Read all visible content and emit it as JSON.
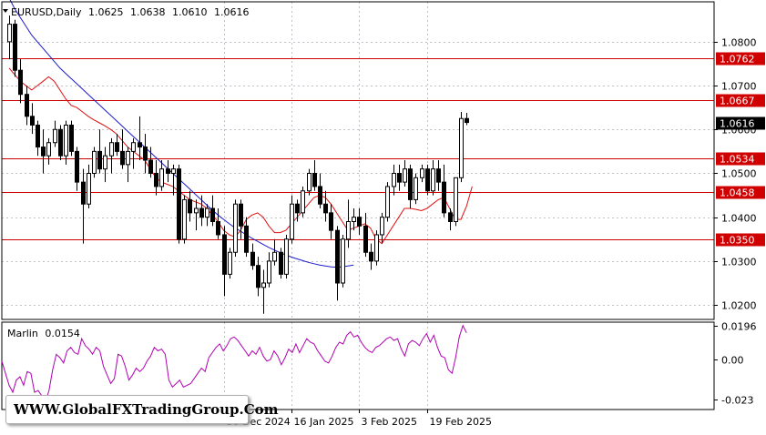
{
  "chart_data": {
    "type": "candlestick",
    "symbol_header": {
      "symbol": "EURUSD,Daily",
      "open": "1.0625",
      "high": "1.0638",
      "low": "1.0610",
      "close": "1.0616"
    },
    "price_axis": {
      "ylim": [
        1.0167,
        1.0891
      ],
      "ticks": [
        "1.0800",
        "1.0700",
        "1.0600",
        "1.0500",
        "1.0400",
        "1.0300",
        "1.0200"
      ],
      "current_price_label": "1.0616"
    },
    "levels": [
      {
        "label": "1.0762",
        "value": 1.0762
      },
      {
        "label": "1.0667",
        "value": 1.0667
      },
      {
        "label": "1.0534",
        "value": 1.0534
      },
      {
        "label": "1.0458",
        "value": 1.0458
      },
      {
        "label": "1.0350",
        "value": 1.035
      }
    ],
    "time_axis": {
      "labels": [
        {
          "text": "30 Dec 2024",
          "index": 38
        },
        {
          "text": "16 Jan 2025",
          "index": 50
        },
        {
          "text": "3 Feb 2025",
          "index": 62
        },
        {
          "text": "19 Feb 2025",
          "index": 74
        }
      ]
    },
    "candles": [
      [
        1.08,
        1.086,
        1.076,
        1.084
      ],
      [
        1.084,
        1.085,
        1.072,
        1.0735
      ],
      [
        1.0735,
        1.076,
        1.066,
        1.068
      ],
      [
        1.068,
        1.07,
        1.061,
        1.063
      ],
      [
        1.063,
        1.066,
        1.059,
        1.061
      ],
      [
        1.061,
        1.062,
        1.054,
        1.056
      ],
      [
        1.056,
        1.06,
        1.05,
        1.054
      ],
      [
        1.054,
        1.058,
        1.052,
        1.057
      ],
      [
        1.057,
        1.062,
        1.056,
        1.06
      ],
      [
        1.06,
        1.061,
        1.053,
        1.054
      ],
      [
        1.054,
        1.062,
        1.052,
        1.061
      ],
      [
        1.061,
        1.062,
        1.054,
        1.055
      ],
      [
        1.055,
        1.056,
        1.046,
        1.048
      ],
      [
        1.048,
        1.051,
        1.034,
        1.043
      ],
      [
        1.043,
        1.052,
        1.042,
        1.05
      ],
      [
        1.05,
        1.056,
        1.049,
        1.055
      ],
      [
        1.055,
        1.06,
        1.05,
        1.051
      ],
      [
        1.051,
        1.056,
        1.048,
        1.054
      ],
      [
        1.054,
        1.058,
        1.05,
        1.057
      ],
      [
        1.057,
        1.059,
        1.054,
        1.055
      ],
      [
        1.055,
        1.06,
        1.051,
        1.052
      ],
      [
        1.052,
        1.056,
        1.048,
        1.055
      ],
      [
        1.055,
        1.058,
        1.051,
        1.057
      ],
      [
        1.057,
        1.063,
        1.053,
        1.056
      ],
      [
        1.056,
        1.059,
        1.05,
        1.053
      ],
      [
        1.053,
        1.056,
        1.049,
        1.05
      ],
      [
        1.05,
        1.053,
        1.045,
        1.047
      ],
      [
        1.047,
        1.053,
        1.046,
        1.051
      ],
      [
        1.051,
        1.053,
        1.048,
        1.05
      ],
      [
        1.05,
        1.052,
        1.045,
        1.051
      ],
      [
        1.051,
        1.052,
        1.034,
        1.035
      ],
      [
        1.035,
        1.045,
        1.034,
        1.044
      ],
      [
        1.044,
        1.046,
        1.039,
        1.041
      ],
      [
        1.041,
        1.044,
        1.037,
        1.042
      ],
      [
        1.042,
        1.045,
        1.038,
        1.04
      ],
      [
        1.04,
        1.043,
        1.038,
        1.042
      ],
      [
        1.042,
        1.045,
        1.038,
        1.039
      ],
      [
        1.039,
        1.042,
        1.035,
        1.036
      ],
      [
        1.036,
        1.038,
        1.022,
        1.027
      ],
      [
        1.027,
        1.033,
        1.026,
        1.032
      ],
      [
        1.032,
        1.044,
        1.031,
        1.043
      ],
      [
        1.043,
        1.044,
        1.035,
        1.038
      ],
      [
        1.038,
        1.04,
        1.031,
        1.032
      ],
      [
        1.032,
        1.034,
        1.028,
        1.029
      ],
      [
        1.029,
        1.031,
        1.022,
        1.024
      ],
      [
        1.024,
        1.028,
        1.018,
        1.025
      ],
      [
        1.025,
        1.032,
        1.024,
        1.03
      ],
      [
        1.03,
        1.035,
        1.029,
        1.032
      ],
      [
        1.032,
        1.033,
        1.026,
        1.027
      ],
      [
        1.027,
        1.036,
        1.026,
        1.035
      ],
      [
        1.035,
        1.045,
        1.034,
        1.043
      ],
      [
        1.043,
        1.044,
        1.039,
        1.041
      ],
      [
        1.041,
        1.047,
        1.04,
        1.046
      ],
      [
        1.046,
        1.051,
        1.045,
        1.05
      ],
      [
        1.05,
        1.053,
        1.046,
        1.047
      ],
      [
        1.047,
        1.05,
        1.042,
        1.043
      ],
      [
        1.043,
        1.046,
        1.039,
        1.041
      ],
      [
        1.041,
        1.043,
        1.035,
        1.037
      ],
      [
        1.037,
        1.038,
        1.021,
        1.025
      ],
      [
        1.025,
        1.036,
        1.024,
        1.035
      ],
      [
        1.035,
        1.044,
        1.033,
        1.039
      ],
      [
        1.039,
        1.042,
        1.037,
        1.04
      ],
      [
        1.04,
        1.042,
        1.036,
        1.038
      ],
      [
        1.038,
        1.041,
        1.031,
        1.032
      ],
      [
        1.032,
        1.034,
        1.028,
        1.03
      ],
      [
        1.03,
        1.037,
        1.029,
        1.036
      ],
      [
        1.036,
        1.041,
        1.034,
        1.04
      ],
      [
        1.04,
        1.048,
        1.039,
        1.047
      ],
      [
        1.047,
        1.052,
        1.045,
        1.05
      ],
      [
        1.05,
        1.052,
        1.046,
        1.048
      ],
      [
        1.048,
        1.053,
        1.047,
        1.051
      ],
      [
        1.051,
        1.052,
        1.042,
        1.044
      ],
      [
        1.044,
        1.05,
        1.043,
        1.049
      ],
      [
        1.049,
        1.052,
        1.048,
        1.051
      ],
      [
        1.051,
        1.052,
        1.045,
        1.046
      ],
      [
        1.046,
        1.053,
        1.045,
        1.051
      ],
      [
        1.051,
        1.053,
        1.046,
        1.048
      ],
      [
        1.048,
        1.052,
        1.04,
        1.041
      ],
      [
        1.041,
        1.042,
        1.037,
        1.039
      ],
      [
        1.039,
        1.049,
        1.038,
        1.049
      ],
      [
        1.049,
        1.064,
        1.048,
        1.0625
      ],
      [
        1.0625,
        1.0638,
        1.061,
        1.0616
      ]
    ],
    "ma_fast": [
      1.074,
      1.0725,
      1.071,
      1.07,
      1.069,
      1.07,
      1.071,
      1.072,
      1.071,
      1.069,
      1.067,
      1.0655,
      1.065,
      1.064,
      1.063,
      1.0622,
      1.0615,
      1.0608,
      1.06,
      1.059,
      1.0575,
      1.056,
      1.055,
      1.054,
      1.053,
      1.051,
      1.049,
      1.048,
      1.0475,
      1.047,
      1.046,
      1.045,
      1.044,
      1.0435,
      1.043,
      1.042,
      1.0405,
      1.039,
      1.037,
      1.036,
      1.0355,
      1.037,
      1.0395,
      1.0405,
      1.041,
      1.04,
      1.038,
      1.0365,
      1.0365,
      1.037,
      1.0385,
      1.04,
      1.0415,
      1.043,
      1.0445,
      1.045,
      1.0445,
      1.043,
      1.041,
      1.039,
      1.037,
      1.0375,
      1.038,
      1.0385,
      1.0375,
      1.035,
      1.034,
      1.036,
      1.038,
      1.04,
      1.042,
      1.042,
      1.0418,
      1.0415,
      1.042,
      1.043,
      1.044,
      1.0445,
      1.042,
      1.0395,
      1.0395,
      1.0425,
      1.047
    ],
    "ma_slow": [
      1.09,
      1.0875,
      1.0855,
      1.0835,
      1.0815,
      1.08,
      1.0785,
      1.077,
      1.0755,
      1.074,
      1.0728,
      1.0716,
      1.0704,
      1.0692,
      1.068,
      1.0668,
      1.0656,
      1.0644,
      1.0632,
      1.062,
      1.0608,
      1.0596,
      1.0584,
      1.0572,
      1.056,
      1.0548,
      1.0536,
      1.0524,
      1.0512,
      1.05,
      1.0488,
      1.0476,
      1.0464,
      1.0452,
      1.044,
      1.0428,
      1.0416,
      1.0405,
      1.0395,
      1.0385,
      1.0376,
      1.0368,
      1.036,
      1.0352,
      1.0345,
      1.0338,
      1.0331,
      1.0325,
      1.0319,
      1.0314,
      1.0309,
      1.0305,
      1.0301,
      1.0297,
      1.0294,
      1.0291,
      1.0289,
      1.0287,
      1.0286,
      1.0287,
      1.0289,
      1.0291
    ],
    "indicator": {
      "name": "Marlin",
      "value_label": "0.0154",
      "ylim": [
        -0.029,
        0.0216
      ],
      "ticks": [
        {
          "text": "0.0196",
          "value": 0.0196
        },
        {
          "text": "0.00",
          "value": 0.0
        },
        {
          "text": "-0.023",
          "value": -0.023
        }
      ],
      "values": [
        -0.001,
        -0.008,
        -0.015,
        -0.019,
        -0.012,
        -0.01,
        -0.015,
        -0.007,
        -0.008,
        -0.019,
        -0.018,
        -0.021,
        -0.025,
        -0.018,
        -0.006,
        0.003,
        0.001,
        -0.002,
        0.005,
        0.007,
        0.004,
        0.003,
        0.012,
        0.008,
        0.006,
        0.003,
        0.007,
        0.005,
        -0.004,
        -0.009,
        -0.014,
        -0.011,
        0.003,
        0.002,
        -0.004,
        -0.012,
        -0.009,
        -0.005,
        -0.007,
        -0.005,
        -0.001,
        0.002,
        0.007,
        0.005,
        0.006,
        0.003,
        -0.012,
        -0.016,
        -0.014,
        -0.012,
        -0.016,
        -0.015,
        -0.014,
        -0.011,
        -0.008,
        -0.005,
        -0.007,
        0.001,
        0.004,
        0.007,
        0.009,
        0.005,
        0.008,
        0.012,
        0.013,
        0.011,
        0.008,
        0.005,
        0.002,
        0.005,
        0.003,
        0.007,
        0.002,
        -0.001,
        0.0,
        0.005,
        0.002,
        -0.003,
        0.001,
        0.006,
        0.004,
        0.009,
        0.004,
        0.008,
        0.012,
        0.01,
        0.009,
        0.005,
        0.002,
        -0.001,
        -0.002,
        0.002,
        0.007,
        0.01,
        0.009,
        0.014,
        0.016,
        0.013,
        0.014,
        0.01,
        0.007,
        0.005,
        0.004,
        0.007,
        0.008,
        0.01,
        0.012,
        0.013,
        0.011,
        0.012,
        0.006,
        0.002,
        0.009,
        0.011,
        0.01,
        0.008,
        0.012,
        0.015,
        0.01,
        0.014,
        0.007,
        0.002,
        0.001,
        -0.006,
        -0.008,
        0.001,
        0.013,
        0.0196,
        0.0154
      ]
    }
  },
  "watermark": "WWW.GlobalFXTradingGroup.Com",
  "colors": {
    "level": "#cc0000",
    "ma_fast": "#e01010",
    "ma_slow": "#1a1acc",
    "indicator": "#b000b0",
    "grid": "#c0c0c8",
    "axis": "#000000",
    "label_bg": "#d10000"
  }
}
